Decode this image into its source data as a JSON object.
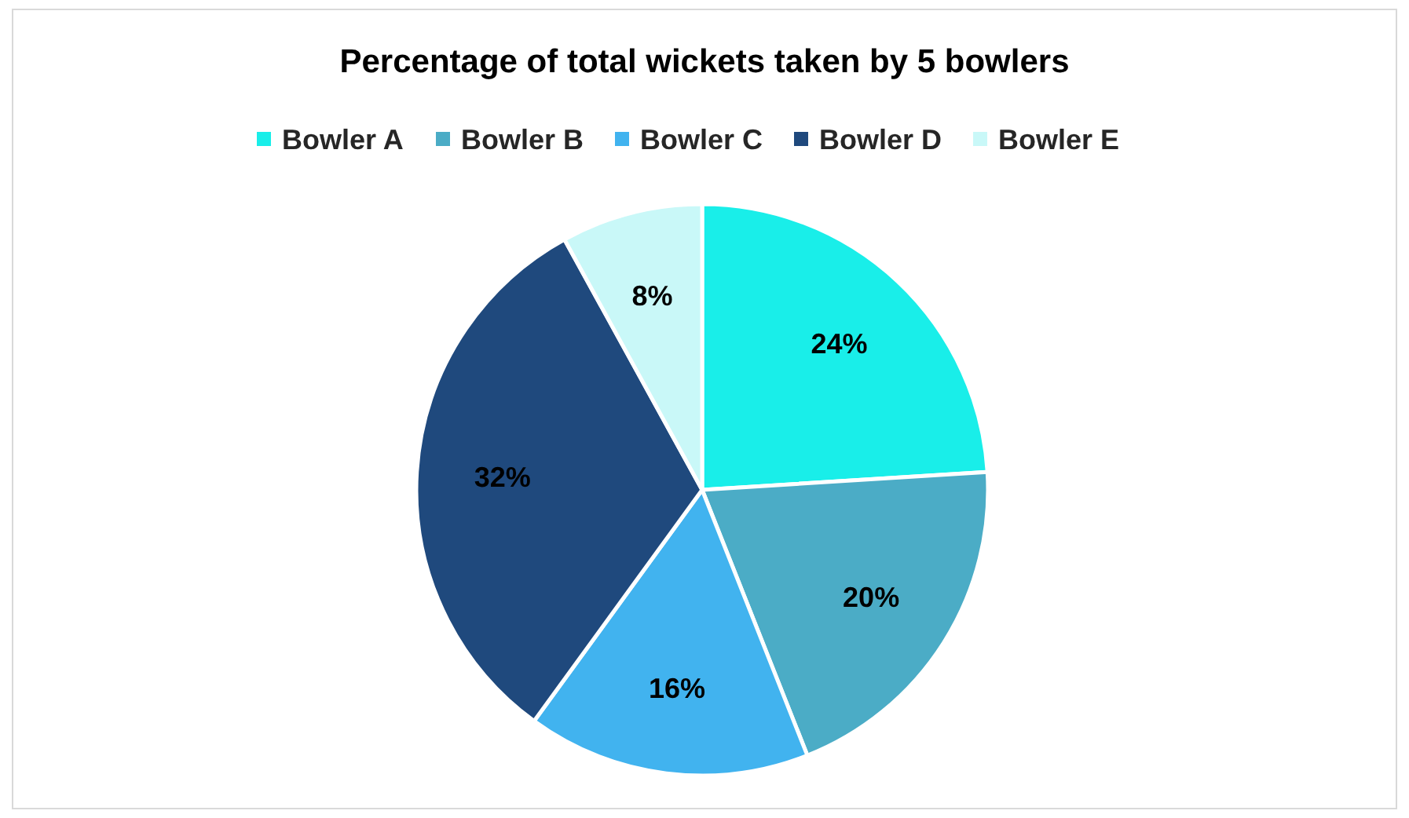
{
  "chart_data": {
    "type": "pie",
    "title": "Percentage of total wickets taken by 5 bowlers",
    "categories": [
      "Bowler A",
      "Bowler B",
      "Bowler C",
      "Bowler D",
      "Bowler E"
    ],
    "values": [
      24,
      20,
      16,
      32,
      8
    ],
    "colors": [
      "#19eee9",
      "#4bacc6",
      "#41b3ef",
      "#1f497d",
      "#c9f8f8"
    ],
    "value_labels": [
      "24%",
      "20%",
      "16%",
      "32%",
      "8%"
    ],
    "legend": "top"
  }
}
